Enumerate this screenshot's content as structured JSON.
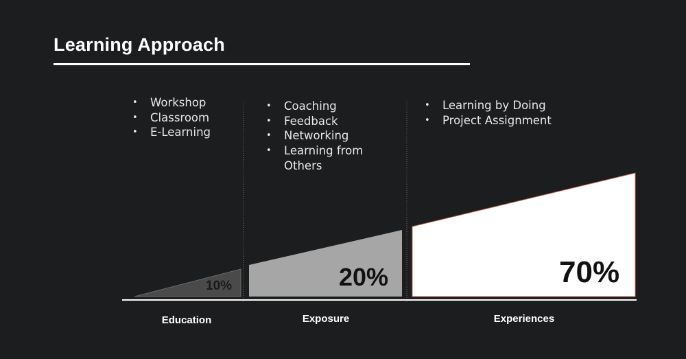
{
  "title": "Learning Approach",
  "columns": [
    {
      "label": "Education",
      "percent": "10%",
      "value": 10,
      "items": [
        "Workshop",
        "Classroom",
        "E-Learning"
      ],
      "fill_color": "#4a4a4a"
    },
    {
      "label": "Exposure",
      "percent": "20%",
      "value": 20,
      "items": [
        "Coaching",
        "Feedback",
        "Networking",
        "Learning from Others"
      ],
      "fill_color": "#a6a6a6"
    },
    {
      "label": "Experiences",
      "percent": "70%",
      "value": 70,
      "items": [
        "Learning by Doing",
        "Project Assignment"
      ],
      "fill_color": "#ffffff"
    }
  ],
  "colors": {
    "background": "#1c1d1e",
    "text": "#ffffff",
    "baseline": "#ffffff",
    "experiences_outline": "#c96a55"
  }
}
